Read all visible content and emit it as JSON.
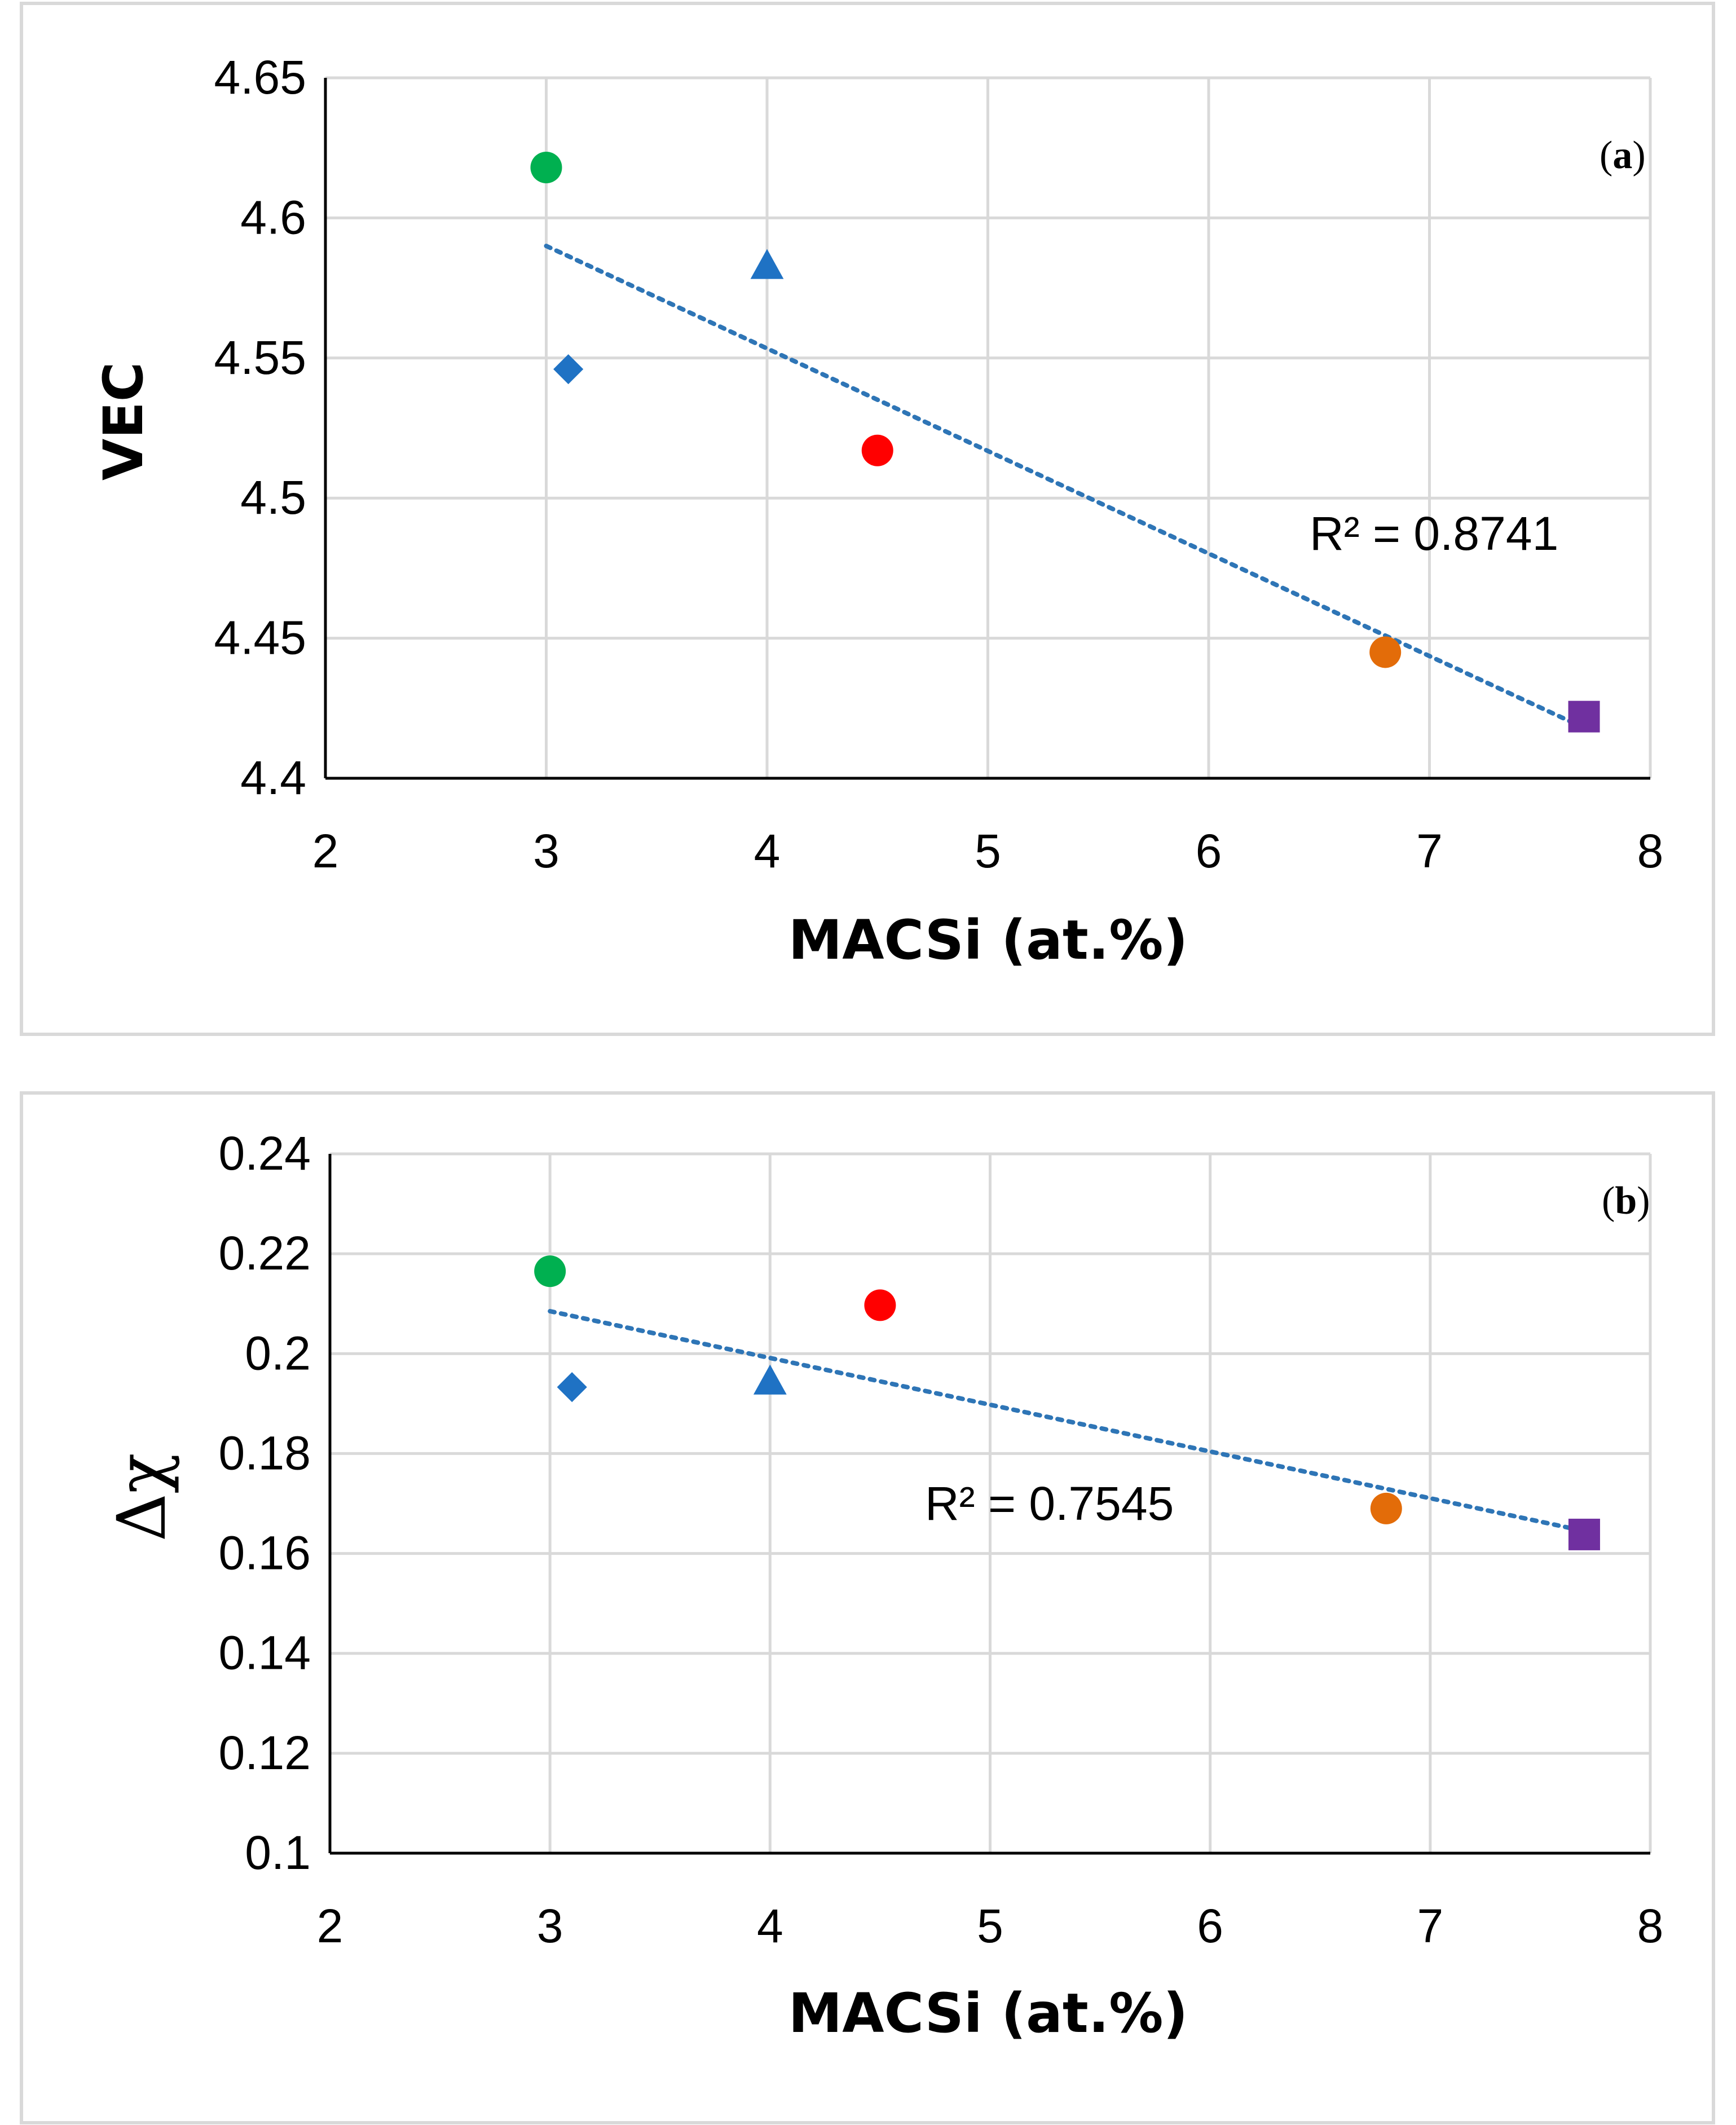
{
  "colors": {
    "green": "#00b050",
    "blue": "#1f72c4",
    "red": "#ff0000",
    "orange": "#e36c09",
    "purple": "#7030a0",
    "trendline": "#2e75b6"
  },
  "chart_data": [
    {
      "type": "scatter",
      "panel_label": "a",
      "xlabel": "MACSi (at.%)",
      "ylabel": "VEC",
      "xlim": [
        2,
        8
      ],
      "ylim": [
        4.4,
        4.65
      ],
      "xticks": [
        "2",
        "3",
        "4",
        "5",
        "6",
        "7",
        "8"
      ],
      "yticks": [
        "4.4",
        "4.45",
        "4.5",
        "4.55",
        "4.6",
        "4.65"
      ],
      "grid": true,
      "points": [
        {
          "x": 3.0,
          "y": 4.618,
          "marker": "circle",
          "color": "green"
        },
        {
          "x": 3.1,
          "y": 4.546,
          "marker": "diamond",
          "color": "blue"
        },
        {
          "x": 4.0,
          "y": 4.583,
          "marker": "triangle",
          "color": "blue"
        },
        {
          "x": 4.5,
          "y": 4.517,
          "marker": "circle",
          "color": "red"
        },
        {
          "x": 6.8,
          "y": 4.445,
          "marker": "circle",
          "color": "orange"
        },
        {
          "x": 7.7,
          "y": 4.422,
          "marker": "square",
          "color": "purple"
        }
      ],
      "trendline": {
        "type": "linear",
        "points": [
          [
            3.0,
            4.59
          ],
          [
            7.7,
            4.418
          ]
        ],
        "style": "dotted"
      },
      "r2_text": "R² = 0.8741"
    },
    {
      "type": "scatter",
      "panel_label": "b",
      "xlabel": "MACSi (at.%)",
      "ylabel": "Δχ",
      "xlim": [
        2,
        8
      ],
      "ylim": [
        0.1,
        0.24
      ],
      "xticks": [
        "2",
        "3",
        "4",
        "5",
        "6",
        "7",
        "8"
      ],
      "yticks": [
        "0.1",
        "0.12",
        "0.14",
        "0.16",
        "0.18",
        "0.2",
        "0.22",
        "0.24"
      ],
      "grid": true,
      "points": [
        {
          "x": 3.0,
          "y": 0.2165,
          "marker": "circle",
          "color": "green"
        },
        {
          "x": 3.1,
          "y": 0.1933,
          "marker": "diamond",
          "color": "blue"
        },
        {
          "x": 4.0,
          "y": 0.1945,
          "marker": "triangle",
          "color": "blue"
        },
        {
          "x": 4.5,
          "y": 0.2097,
          "marker": "circle",
          "color": "red"
        },
        {
          "x": 6.8,
          "y": 0.169,
          "marker": "circle",
          "color": "orange"
        },
        {
          "x": 7.7,
          "y": 0.1638,
          "marker": "square",
          "color": "purple"
        }
      ],
      "trendline": {
        "type": "linear",
        "points": [
          [
            3.0,
            0.2085
          ],
          [
            7.7,
            0.1645
          ]
        ],
        "style": "dotted"
      },
      "r2_text": "R² = 0.7545"
    }
  ]
}
